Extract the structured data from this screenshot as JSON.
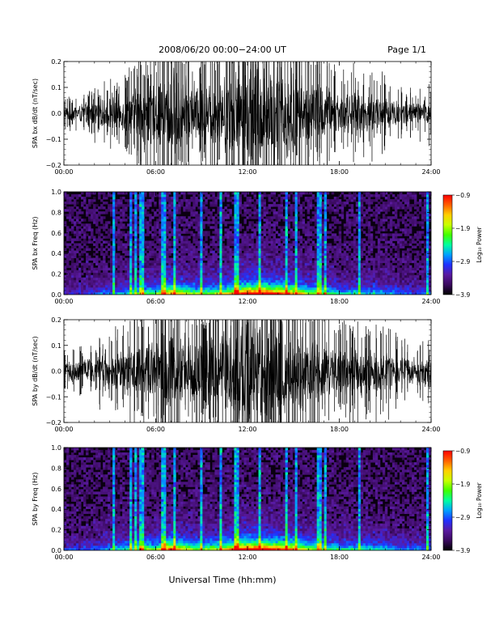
{
  "header": {
    "title": "2008/06/20  00:00−24:00 UT",
    "page": "Page 1/1"
  },
  "footer": {
    "xlabel": "Universal Time (hh:mm)"
  },
  "colors": {
    "trace": "#000000",
    "background": "#ffffff",
    "spectrogram_scale": [
      "#000000",
      "#3a0a5e",
      "#5a1aa0",
      "#2030ff",
      "#00a0ff",
      "#00ffa0",
      "#40ff00",
      "#c8ff00",
      "#ffd000",
      "#ff6000",
      "#ff0000"
    ]
  },
  "chart_data": [
    {
      "type": "line",
      "name": "bx-waveform",
      "ylabel": "SPA bx dB/dt (nT/sec)",
      "xlim": [
        0,
        24
      ],
      "ylim": [
        -0.2,
        0.2
      ],
      "xticks": [
        "00:00",
        "06:00",
        "12:00",
        "18:00",
        "24:00"
      ],
      "yticks": [
        "−0.2",
        "−0.1",
        "0.0",
        "0.1",
        "0.2"
      ],
      "envelope": {
        "hours": [
          0,
          1,
          2,
          3,
          4,
          5,
          6,
          7,
          8,
          9,
          10,
          11,
          12,
          13,
          14,
          15,
          16,
          17,
          18,
          19,
          20,
          21,
          22,
          23,
          24
        ],
        "amplitude": [
          0.03,
          0.04,
          0.05,
          0.07,
          0.08,
          0.12,
          0.12,
          0.2,
          0.15,
          0.13,
          0.14,
          0.18,
          0.25,
          0.25,
          0.22,
          0.2,
          0.14,
          0.13,
          0.09,
          0.1,
          0.09,
          0.08,
          0.06,
          0.05,
          0.06
        ]
      }
    },
    {
      "type": "heatmap",
      "name": "bx-spectrogram",
      "ylabel": "SPA bx Freq (Hz)",
      "xlim": [
        0,
        24
      ],
      "ylim": [
        0,
        1.0
      ],
      "xticks": [
        "00:00",
        "06:00",
        "12:00",
        "18:00",
        "24:00"
      ],
      "yticks": [
        "0.0",
        "0.2",
        "0.4",
        "0.6",
        "0.8",
        "1.0"
      ],
      "colorbar": {
        "label": "Log₁₀ Power",
        "range": [
          -3.9,
          -0.9
        ],
        "ticks": [
          "−0.9",
          "−1.9",
          "−2.9",
          "−3.9"
        ]
      }
    },
    {
      "type": "line",
      "name": "by-waveform",
      "ylabel": "SPA by dB/dt (nT/sec)",
      "xlim": [
        0,
        24
      ],
      "ylim": [
        -0.2,
        0.2
      ],
      "xticks": [
        "00:00",
        "06:00",
        "12:00",
        "18:00",
        "24:00"
      ],
      "yticks": [
        "−0.2",
        "−0.1",
        "0.0",
        "0.1",
        "0.2"
      ],
      "envelope": {
        "hours": [
          0,
          1,
          2,
          3,
          4,
          5,
          6,
          7,
          8,
          9,
          10,
          11,
          12,
          13,
          14,
          15,
          16,
          17,
          18,
          19,
          20,
          21,
          22,
          23,
          24
        ],
        "amplitude": [
          0.04,
          0.05,
          0.06,
          0.08,
          0.1,
          0.14,
          0.13,
          0.22,
          0.16,
          0.13,
          0.16,
          0.2,
          0.25,
          0.25,
          0.22,
          0.2,
          0.14,
          0.13,
          0.1,
          0.1,
          0.1,
          0.09,
          0.07,
          0.06,
          0.07
        ]
      }
    },
    {
      "type": "heatmap",
      "name": "by-spectrogram",
      "ylabel": "SPA by Freq (Hz)",
      "xlim": [
        0,
        24
      ],
      "ylim": [
        0,
        1.0
      ],
      "xticks": [
        "00:00",
        "06:00",
        "12:00",
        "18:00",
        "24:00"
      ],
      "yticks": [
        "0.0",
        "0.2",
        "0.4",
        "0.6",
        "0.8",
        "1.0"
      ],
      "colorbar": {
        "label": "Log₁₀ Power",
        "range": [
          -3.9,
          -0.9
        ],
        "ticks": [
          "−0.9",
          "−1.9",
          "−2.9",
          "−3.9"
        ]
      }
    }
  ]
}
